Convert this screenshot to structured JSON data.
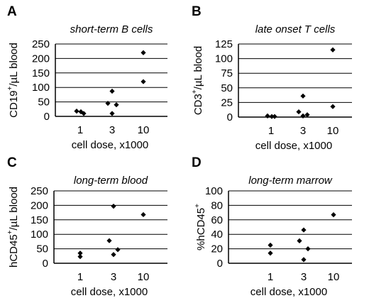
{
  "chart_data": [
    {
      "type": "scatter",
      "panel_label": "A",
      "title": "short-term B cells",
      "ylabel_main": "CD19",
      "ylabel_sup": "+",
      "ylabel_rest": "/µL blood",
      "xlabel": "cell dose, x1000",
      "categories": [
        "1",
        "3",
        "10"
      ],
      "ylim": [
        0,
        250
      ],
      "yticks": [
        0,
        50,
        100,
        150,
        200,
        250
      ],
      "grid": "horizontal",
      "points": [
        {
          "x": "1",
          "y": 18
        },
        {
          "x": "1",
          "y": 10
        },
        {
          "x": "1",
          "y": 16
        },
        {
          "x": "3",
          "y": 87
        },
        {
          "x": "3",
          "y": 45
        },
        {
          "x": "3",
          "y": 40
        },
        {
          "x": "3",
          "y": 10
        },
        {
          "x": "10",
          "y": 220
        },
        {
          "x": "10",
          "y": 120
        }
      ]
    },
    {
      "type": "scatter",
      "panel_label": "B",
      "title": "late onset T cells",
      "ylabel_main": "CD3",
      "ylabel_sup": "+",
      "ylabel_rest": "/µL blood",
      "xlabel": "cell dose, x1000",
      "categories": [
        "1",
        "3",
        "10"
      ],
      "ylim": [
        0,
        125
      ],
      "yticks": [
        0,
        25,
        50,
        75,
        100,
        125
      ],
      "grid": "horizontal",
      "points": [
        {
          "x": "1",
          "y": 2
        },
        {
          "x": "1",
          "y": 1
        },
        {
          "x": "1",
          "y": 1
        },
        {
          "x": "3",
          "y": 36
        },
        {
          "x": "3",
          "y": 9
        },
        {
          "x": "3",
          "y": 4
        },
        {
          "x": "3",
          "y": 2
        },
        {
          "x": "10",
          "y": 115
        },
        {
          "x": "10",
          "y": 18
        }
      ]
    },
    {
      "type": "scatter",
      "panel_label": "C",
      "title": "long-term blood",
      "ylabel_main": "hCD45",
      "ylabel_sup": "+",
      "ylabel_rest": "/µL blood",
      "xlabel": "cell dose, x1000",
      "categories": [
        "1",
        "3",
        "10"
      ],
      "ylim": [
        0,
        250
      ],
      "yticks": [
        0,
        50,
        100,
        150,
        200,
        250
      ],
      "grid": "horizontal",
      "points": [
        {
          "x": "1",
          "y": 35
        },
        {
          "x": "1",
          "y": 23
        },
        {
          "x": "3",
          "y": 197
        },
        {
          "x": "3",
          "y": 78
        },
        {
          "x": "3",
          "y": 47
        },
        {
          "x": "3",
          "y": 30
        },
        {
          "x": "10",
          "y": 168
        }
      ]
    },
    {
      "type": "scatter",
      "panel_label": "D",
      "title": "long-term marrow",
      "ylabel_main": "%hCD45",
      "ylabel_sup": "+",
      "ylabel_rest": "",
      "xlabel": "cell dose, x1000",
      "categories": [
        "1",
        "3",
        "10"
      ],
      "ylim": [
        0,
        100
      ],
      "yticks": [
        0,
        20,
        40,
        60,
        80,
        100
      ],
      "grid": "horizontal",
      "points": [
        {
          "x": "1",
          "y": 25
        },
        {
          "x": "1",
          "y": 14
        },
        {
          "x": "3",
          "y": 46
        },
        {
          "x": "3",
          "y": 31
        },
        {
          "x": "3",
          "y": 20
        },
        {
          "x": "3",
          "y": 5
        },
        {
          "x": "10",
          "y": 67
        }
      ]
    }
  ],
  "style": {
    "point_color": "#000000",
    "grid_color": "#000000",
    "axis_color": "#000000"
  }
}
